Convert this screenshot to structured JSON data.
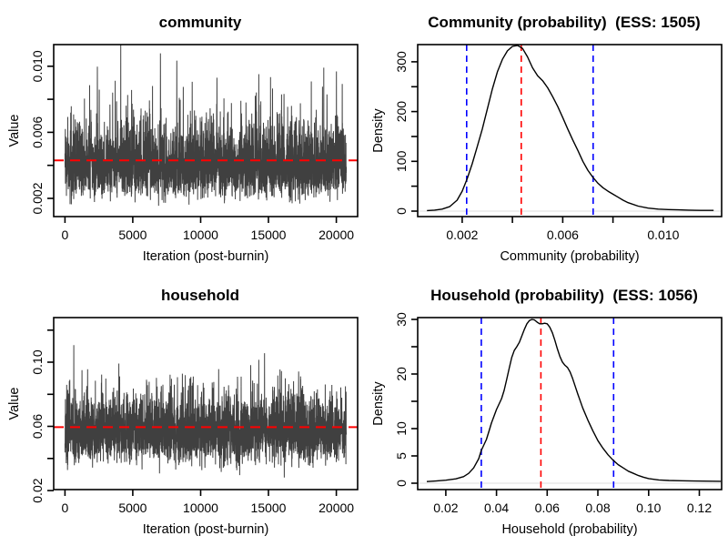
{
  "figure": {
    "background": "#ffffff",
    "colors": {
      "trace": "#404040",
      "mean_line": "#ff0000",
      "ci_line": "#0000ff",
      "density_line": "#000000",
      "axis": "#000000",
      "zero_line": "#dcdcdc"
    }
  },
  "chart_data": [
    {
      "type": "line",
      "subtype": "trace",
      "title": "community",
      "xlabel": "Iteration (post-burnin)",
      "ylabel": "Value",
      "x_range": [
        -830,
        21570
      ],
      "y_range": [
        0.0009,
        0.01131
      ],
      "x_ticks": [
        0,
        5000,
        10000,
        15000,
        20000
      ],
      "x_tick_labels": [
        "0",
        "5000",
        "10000",
        "15000",
        "20000"
      ],
      "y_ticks": [
        0.002,
        0.004,
        0.006,
        0.008,
        0.01
      ],
      "y_tick_labels": [
        "0.002",
        "",
        "0.006",
        "",
        "0.010"
      ],
      "mean_line": 0.0043,
      "generator": {
        "seed": 42,
        "n": 3000,
        "iterations": 20740,
        "geometric_mean": 0.004,
        "sdlog": 0.3,
        "clip": [
          0.00095,
          0.0113
        ]
      }
    },
    {
      "type": "line",
      "subtype": "density",
      "title": "Community (probability)  (ESS: 1505)",
      "ess": 1505,
      "xlabel": "Community (probability)",
      "ylabel": "Density",
      "x_range": [
        0.000231,
        0.01232
      ],
      "y_range": [
        -11,
        334.6
      ],
      "x_ticks": [
        0.002,
        0.004,
        0.006,
        0.008,
        0.01
      ],
      "x_tick_labels": [
        "0.002",
        "",
        "0.006",
        "",
        "0.010"
      ],
      "y_ticks": [
        0,
        50,
        100,
        150,
        200,
        250,
        300
      ],
      "y_tick_labels": [
        "0",
        "",
        "100",
        "",
        "200",
        "",
        "300"
      ],
      "mean_line": 0.00435,
      "ci_lines": [
        0.00218,
        0.00721
      ],
      "curve": [
        [
          0.0006,
          1
        ],
        [
          0.0009,
          2
        ],
        [
          0.0012,
          4
        ],
        [
          0.0015,
          9
        ],
        [
          0.0018,
          22
        ],
        [
          0.002,
          40
        ],
        [
          0.0022,
          65
        ],
        [
          0.0024,
          95
        ],
        [
          0.0026,
          130
        ],
        [
          0.0028,
          165
        ],
        [
          0.003,
          205
        ],
        [
          0.0032,
          245
        ],
        [
          0.0034,
          280
        ],
        [
          0.0036,
          305
        ],
        [
          0.0038,
          322
        ],
        [
          0.004,
          331
        ],
        [
          0.0042,
          333
        ],
        [
          0.0044,
          327
        ],
        [
          0.0046,
          310
        ],
        [
          0.0048,
          288
        ],
        [
          0.005,
          272
        ],
        [
          0.0052,
          262
        ],
        [
          0.0054,
          248
        ],
        [
          0.0056,
          230
        ],
        [
          0.0058,
          210
        ],
        [
          0.006,
          188
        ],
        [
          0.0062,
          165
        ],
        [
          0.0064,
          143
        ],
        [
          0.0066,
          122
        ],
        [
          0.0068,
          100
        ],
        [
          0.007,
          82
        ],
        [
          0.0072,
          68
        ],
        [
          0.0074,
          56
        ],
        [
          0.0076,
          47
        ],
        [
          0.0078,
          40
        ],
        [
          0.008,
          34
        ],
        [
          0.0082,
          28
        ],
        [
          0.0084,
          22
        ],
        [
          0.0086,
          17
        ],
        [
          0.009,
          10
        ],
        [
          0.0094,
          6
        ],
        [
          0.0098,
          4
        ],
        [
          0.0102,
          3
        ],
        [
          0.0106,
          2.5
        ],
        [
          0.011,
          2
        ],
        [
          0.0115,
          1.5
        ],
        [
          0.012,
          1.5
        ]
      ]
    },
    {
      "type": "line",
      "subtype": "trace",
      "title": "household",
      "xlabel": "Iteration (post-burnin)",
      "ylabel": "Value",
      "x_range": [
        -830,
        21570
      ],
      "y_range": [
        0.0206,
        0.1278
      ],
      "x_ticks": [
        0,
        5000,
        10000,
        15000,
        20000
      ],
      "x_tick_labels": [
        "0",
        "5000",
        "10000",
        "15000",
        "20000"
      ],
      "y_ticks": [
        0.02,
        0.04,
        0.06,
        0.08,
        0.1,
        0.12
      ],
      "y_tick_labels": [
        "0.02",
        "",
        "0.06",
        "",
        "0.10",
        ""
      ],
      "mean_line": 0.0595,
      "generator": {
        "seed": 1337,
        "n": 3000,
        "iterations": 20740,
        "geometric_mean": 0.057,
        "sdlog": 0.195,
        "clip": [
          0.0208,
          0.1275
        ]
      }
    },
    {
      "type": "line",
      "subtype": "density",
      "title": "Household (probability)  (ESS: 1056)",
      "ess": 1056,
      "xlabel": "Household (probability)",
      "ylabel": "Density",
      "x_range": [
        0.00891,
        0.1288
      ],
      "y_range": [
        -1.17,
        30.33
      ],
      "x_ticks": [
        0.02,
        0.04,
        0.06,
        0.08,
        0.1,
        0.12
      ],
      "x_tick_labels": [
        "0.02",
        "0.04",
        "0.06",
        "0.08",
        "0.10",
        "0.12"
      ],
      "y_ticks": [
        0,
        5,
        10,
        15,
        20,
        25,
        30
      ],
      "y_tick_labels": [
        "0",
        "5",
        "10",
        "",
        "20",
        "",
        "30"
      ],
      "mean_line": 0.0575,
      "ci_lines": [
        0.034,
        0.0862
      ],
      "curve": [
        [
          0.0125,
          0.3
        ],
        [
          0.016,
          0.4
        ],
        [
          0.02,
          0.55
        ],
        [
          0.024,
          0.8
        ],
        [
          0.027,
          1.2
        ],
        [
          0.029,
          1.8
        ],
        [
          0.031,
          2.8
        ],
        [
          0.033,
          4.5
        ],
        [
          0.034,
          6
        ],
        [
          0.035,
          7
        ],
        [
          0.036,
          8
        ],
        [
          0.037,
          9.5
        ],
        [
          0.038,
          11
        ],
        [
          0.04,
          13.5
        ],
        [
          0.042,
          15.5
        ],
        [
          0.043,
          17
        ],
        [
          0.044,
          19
        ],
        [
          0.045,
          21
        ],
        [
          0.046,
          23
        ],
        [
          0.047,
          24.3
        ],
        [
          0.048,
          25
        ],
        [
          0.049,
          25.8
        ],
        [
          0.05,
          27
        ],
        [
          0.051,
          28.2
        ],
        [
          0.052,
          29.2
        ],
        [
          0.053,
          29.8
        ],
        [
          0.054,
          30
        ],
        [
          0.055,
          29.9
        ],
        [
          0.056,
          29.5
        ],
        [
          0.057,
          29.2
        ],
        [
          0.058,
          29.2
        ],
        [
          0.059,
          29.3
        ],
        [
          0.06,
          29.2
        ],
        [
          0.061,
          28.6
        ],
        [
          0.062,
          27.6
        ],
        [
          0.063,
          26.2
        ],
        [
          0.064,
          24.6
        ],
        [
          0.065,
          23.2
        ],
        [
          0.066,
          22.2
        ],
        [
          0.067,
          21.6
        ],
        [
          0.068,
          21.2
        ],
        [
          0.069,
          20.4
        ],
        [
          0.07,
          19.2
        ],
        [
          0.071,
          17.8
        ],
        [
          0.072,
          16.4
        ],
        [
          0.074,
          13.8
        ],
        [
          0.076,
          11.6
        ],
        [
          0.078,
          9.6
        ],
        [
          0.08,
          7.8
        ],
        [
          0.082,
          6.4
        ],
        [
          0.084,
          5.2
        ],
        [
          0.086,
          4.2
        ],
        [
          0.088,
          3.4
        ],
        [
          0.09,
          2.8
        ],
        [
          0.092,
          2.2
        ],
        [
          0.094,
          1.8
        ],
        [
          0.096,
          1.4
        ],
        [
          0.098,
          1.1
        ],
        [
          0.1,
          0.85
        ],
        [
          0.104,
          0.6
        ],
        [
          0.108,
          0.5
        ],
        [
          0.113,
          0.45
        ],
        [
          0.118,
          0.4
        ],
        [
          0.1285,
          0.35
        ]
      ]
    }
  ]
}
